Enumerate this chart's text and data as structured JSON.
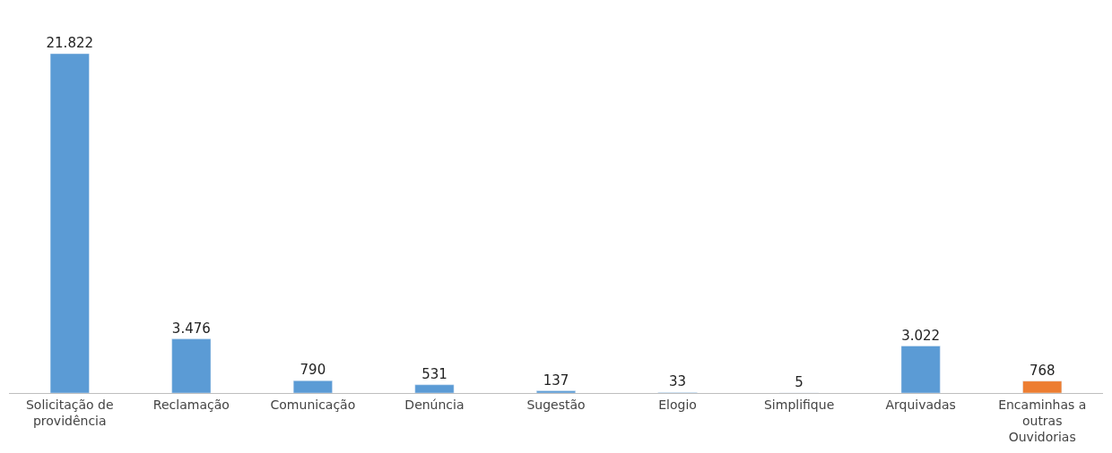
{
  "chart_data": {
    "type": "bar",
    "categories": [
      "Solicitação de providência",
      "Reclamação",
      "Comunicação",
      "Denúncia",
      "Sugestão",
      "Elogio",
      "Simplifique",
      "Arquivadas",
      "Encaminhas a outras Ouvidorias"
    ],
    "values": [
      21822,
      3476,
      790,
      531,
      137,
      33,
      5,
      3022,
      768
    ],
    "value_labels": [
      "21.822",
      "3.476",
      "790",
      "531",
      "137",
      "33",
      "5",
      "3.022",
      "768"
    ],
    "colors": [
      "#5b9bd5",
      "#5b9bd5",
      "#5b9bd5",
      "#5b9bd5",
      "#5b9bd5",
      "#5b9bd5",
      "#5b9bd5",
      "#5b9bd5",
      "#ed7d31"
    ],
    "legend": false
  }
}
